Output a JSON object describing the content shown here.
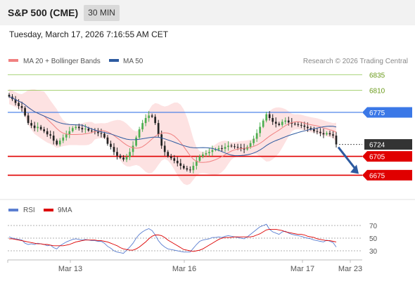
{
  "header": {
    "title": "S&P 500 (CME)",
    "timeframe": "30 MIN"
  },
  "timestamp": "Tuesday, March 17, 2026 7:16:55 AM CET",
  "legend": {
    "ma20": {
      "label": "MA 20 + Bollinger Bands",
      "color": "#f08080"
    },
    "ma50": {
      "label": "MA 50",
      "color": "#2c5aa0"
    },
    "credit": "Research © 2026 Trading Central"
  },
  "rsi_legend": {
    "rsi": {
      "label": "RSI",
      "color": "#5b7fd1"
    },
    "ma9": {
      "label": "9MA",
      "color": "#dd0000"
    }
  },
  "colors": {
    "up": "#4caf50",
    "down": "#222222",
    "band": "#fde2e2",
    "resistance": "#3b78e7",
    "support": "#e00000",
    "target": "#8bc34a",
    "arrow": "#2c5aa0"
  },
  "chart_data": {
    "type": "candlestick",
    "ylim": [
      6652,
      6842
    ],
    "x_ticks": [
      "Mar 13",
      "Mar 16",
      "Mar 17",
      "Mar 23"
    ],
    "levels": [
      {
        "label": "6835",
        "value": 6835,
        "kind": "target"
      },
      {
        "label": "6810",
        "value": 6810,
        "kind": "target"
      },
      {
        "label": "6775",
        "value": 6775,
        "kind": "resistance"
      },
      {
        "label": "6724",
        "value": 6724,
        "kind": "current"
      },
      {
        "label": "6705",
        "value": 6705,
        "kind": "support"
      },
      {
        "label": "6675",
        "value": 6675,
        "kind": "support"
      }
    ],
    "close": [
      6800,
      6796,
      6790,
      6785,
      6782,
      6770,
      6758,
      6754,
      6750,
      6752,
      6748,
      6745,
      6740,
      6738,
      6730,
      6724,
      6730,
      6735,
      6740,
      6745,
      6750,
      6752,
      6750,
      6748,
      6749,
      6746,
      6745,
      6744,
      6742,
      6741,
      6735,
      6725,
      6720,
      6712,
      6706,
      6703,
      6700,
      6704,
      6712,
      6722,
      6735,
      6748,
      6758,
      6766,
      6770,
      6768,
      6758,
      6740,
      6722,
      6712,
      6705,
      6702,
      6698,
      6694,
      6690,
      6686,
      6684,
      6683,
      6690,
      6698,
      6705,
      6708,
      6710,
      6712,
      6715,
      6716,
      6718,
      6717,
      6720,
      6722,
      6721,
      6720,
      6719,
      6718,
      6716,
      6720,
      6726,
      6733,
      6742,
      6752,
      6762,
      6772,
      6766,
      6760,
      6757,
      6755,
      6760,
      6762,
      6759,
      6757,
      6756,
      6755,
      6754,
      6752,
      6750,
      6748,
      6745,
      6744,
      6742,
      6740,
      6742,
      6740,
      6738,
      6724
    ],
    "rsi": [
      52,
      50,
      49,
      48,
      47,
      42,
      40,
      41,
      40,
      42,
      41,
      40,
      38,
      39,
      35,
      33,
      38,
      41,
      44,
      46,
      48,
      49,
      48,
      47,
      48,
      47,
      46,
      46,
      45,
      45,
      42,
      37,
      34,
      30,
      28,
      27,
      26,
      31,
      36,
      42,
      50,
      56,
      60,
      63,
      65,
      62,
      55,
      46,
      40,
      36,
      33,
      32,
      31,
      30,
      29,
      28,
      28,
      28,
      34,
      40,
      45,
      47,
      48,
      49,
      51,
      51,
      52,
      51,
      53,
      54,
      53,
      52,
      51,
      50,
      49,
      52,
      56,
      60,
      64,
      68,
      70,
      72,
      64,
      60,
      58,
      56,
      60,
      61,
      58,
      56,
      55,
      54,
      53,
      51,
      50,
      49,
      47,
      46,
      45,
      44,
      47,
      45,
      43,
      36
    ],
    "rsi_ma9": [
      49,
      49,
      48,
      47,
      46,
      45,
      44,
      43,
      42,
      41,
      41,
      40,
      40,
      39,
      38,
      38,
      38,
      38,
      39,
      40,
      42,
      44,
      45,
      46,
      47,
      47,
      47,
      47,
      46,
      46,
      45,
      44,
      42,
      40,
      38,
      35,
      33,
      32,
      31,
      31,
      33,
      36,
      40,
      44,
      49,
      53,
      55,
      55,
      54,
      51,
      47,
      44,
      41,
      38,
      35,
      32,
      31,
      30,
      29,
      30,
      31,
      33,
      36,
      39,
      42,
      45,
      48,
      50,
      51,
      51,
      51,
      52,
      52,
      52,
      52,
      52,
      52,
      53,
      55,
      57,
      60,
      63,
      64,
      64,
      64,
      63,
      62,
      60,
      59,
      58,
      57,
      56,
      56,
      55,
      53,
      52,
      51,
      49,
      48,
      47,
      46,
      46,
      45,
      44
    ],
    "rsi_levels": [
      70,
      50,
      30
    ]
  }
}
